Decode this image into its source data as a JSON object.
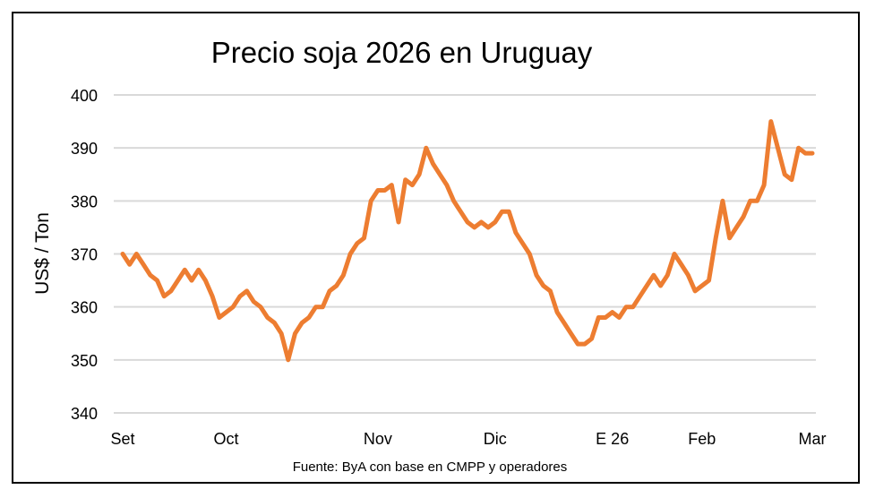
{
  "chart_data": {
    "type": "line",
    "title": "Precio soja 2026 en Uruguay",
    "ylabel": "US$ / Ton",
    "xlabel": "",
    "source": "Fuente: ByA con base en CMPP y operadores",
    "ylim": [
      340,
      400
    ],
    "yticks": [
      340,
      350,
      360,
      370,
      380,
      390,
      400
    ],
    "x_tick_labels": [
      "Set",
      "Oct",
      "Nov",
      "Dic",
      "E 26",
      "Feb",
      "Mar"
    ],
    "grid": true,
    "line_color": "#ED7D31",
    "series": [
      {
        "values": [
          370,
          368,
          370,
          368,
          366,
          365,
          362,
          363,
          365,
          367,
          365,
          367,
          365,
          362,
          358,
          359,
          360,
          362,
          363,
          361,
          360,
          358,
          357,
          355,
          350,
          355,
          357,
          358,
          360,
          360,
          363,
          364,
          366,
          370,
          372,
          373,
          380,
          382,
          382,
          383,
          376,
          384,
          383,
          385,
          390,
          387,
          385,
          383,
          380,
          378,
          376,
          375,
          376,
          375,
          376,
          378,
          378,
          374,
          372,
          370,
          366,
          364,
          363,
          359,
          357,
          355,
          353,
          353,
          354,
          358,
          358,
          359,
          358,
          360,
          360,
          362,
          364,
          366,
          364,
          366,
          370,
          368,
          366,
          363,
          364,
          365,
          373,
          380,
          373,
          375,
          377,
          380,
          380,
          383,
          395,
          390,
          385,
          384,
          390,
          389,
          389
        ]
      }
    ]
  }
}
